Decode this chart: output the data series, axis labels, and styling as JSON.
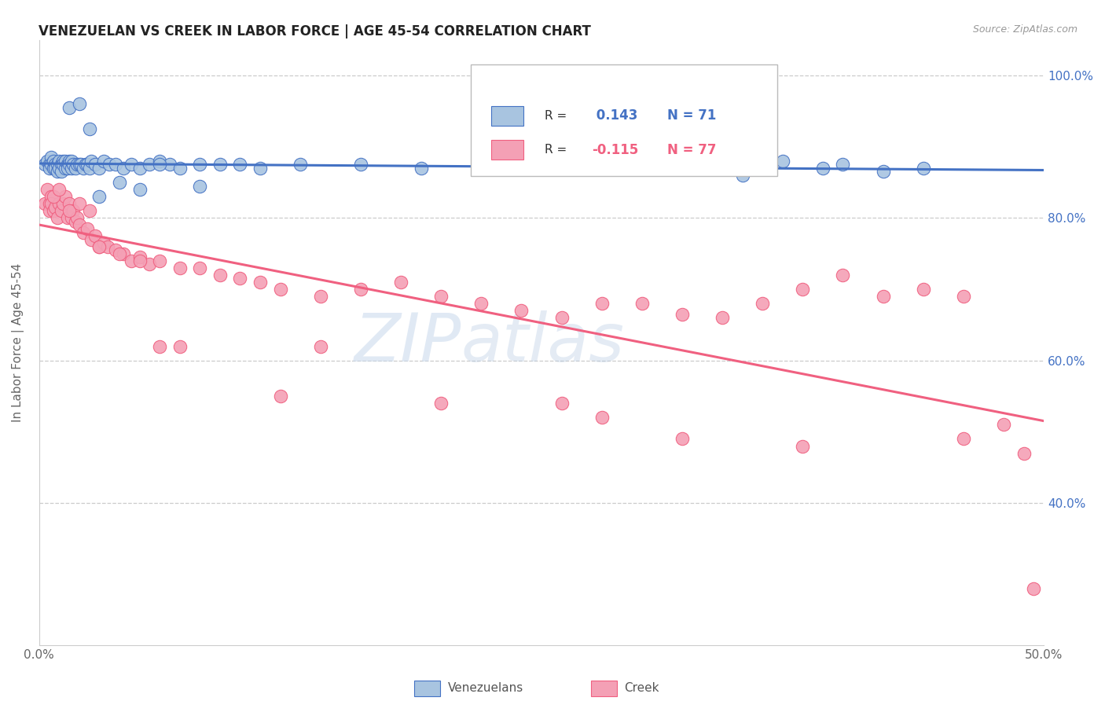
{
  "title": "VENEZUELAN VS CREEK IN LABOR FORCE | AGE 45-54 CORRELATION CHART",
  "source": "Source: ZipAtlas.com",
  "ylabel": "In Labor Force | Age 45-54",
  "xlim": [
    0.0,
    0.5
  ],
  "ylim": [
    0.2,
    1.05
  ],
  "xticks": [
    0.0,
    0.1,
    0.2,
    0.3,
    0.4,
    0.5
  ],
  "xticklabels": [
    "0.0%",
    "",
    "",
    "",
    "",
    "50.0%"
  ],
  "ytick_right_labels": [
    "40.0%",
    "60.0%",
    "80.0%",
    "100.0%"
  ],
  "ytick_right_vals": [
    0.4,
    0.6,
    0.8,
    1.0
  ],
  "legend_r_venezuelan": "0.143",
  "legend_n_venezuelan": "71",
  "legend_r_creek": "-0.115",
  "legend_n_creek": "77",
  "venezuelan_color": "#a8c4e0",
  "creek_color": "#f4a0b5",
  "trend_venezuelan_color": "#4472c4",
  "trend_creek_color": "#f06080",
  "watermark_zip": "ZIP",
  "watermark_atlas": "atlas",
  "venezuelan_x": [
    0.003,
    0.004,
    0.005,
    0.005,
    0.006,
    0.006,
    0.007,
    0.007,
    0.008,
    0.008,
    0.009,
    0.009,
    0.01,
    0.01,
    0.011,
    0.011,
    0.012,
    0.012,
    0.013,
    0.013,
    0.014,
    0.014,
    0.015,
    0.015,
    0.016,
    0.016,
    0.017,
    0.018,
    0.019,
    0.02,
    0.021,
    0.022,
    0.023,
    0.024,
    0.025,
    0.026,
    0.028,
    0.03,
    0.032,
    0.035,
    0.038,
    0.042,
    0.046,
    0.05,
    0.055,
    0.06,
    0.065,
    0.07,
    0.08,
    0.09,
    0.1,
    0.11,
    0.13,
    0.16,
    0.19,
    0.03,
    0.04,
    0.05,
    0.06,
    0.08,
    0.28,
    0.33,
    0.35,
    0.37,
    0.39,
    0.4,
    0.42,
    0.44,
    0.015,
    0.02,
    0.025
  ],
  "venezuelan_y": [
    0.875,
    0.88,
    0.875,
    0.87,
    0.885,
    0.875,
    0.87,
    0.88,
    0.875,
    0.87,
    0.875,
    0.865,
    0.88,
    0.87,
    0.875,
    0.865,
    0.88,
    0.875,
    0.87,
    0.88,
    0.875,
    0.87,
    0.88,
    0.875,
    0.87,
    0.88,
    0.875,
    0.87,
    0.875,
    0.875,
    0.875,
    0.87,
    0.875,
    0.875,
    0.87,
    0.88,
    0.875,
    0.87,
    0.88,
    0.875,
    0.875,
    0.87,
    0.875,
    0.87,
    0.875,
    0.88,
    0.875,
    0.87,
    0.875,
    0.875,
    0.875,
    0.87,
    0.875,
    0.875,
    0.87,
    0.83,
    0.85,
    0.84,
    0.875,
    0.845,
    0.875,
    0.875,
    0.86,
    0.88,
    0.87,
    0.875,
    0.865,
    0.87,
    0.955,
    0.96,
    0.925
  ],
  "creek_x": [
    0.003,
    0.004,
    0.005,
    0.005,
    0.006,
    0.006,
    0.007,
    0.008,
    0.009,
    0.01,
    0.011,
    0.012,
    0.013,
    0.014,
    0.015,
    0.016,
    0.017,
    0.018,
    0.019,
    0.02,
    0.022,
    0.024,
    0.026,
    0.028,
    0.03,
    0.032,
    0.034,
    0.038,
    0.042,
    0.046,
    0.05,
    0.055,
    0.06,
    0.07,
    0.08,
    0.09,
    0.1,
    0.11,
    0.12,
    0.14,
    0.16,
    0.18,
    0.2,
    0.22,
    0.24,
    0.26,
    0.28,
    0.3,
    0.32,
    0.34,
    0.36,
    0.38,
    0.4,
    0.42,
    0.44,
    0.46,
    0.007,
    0.01,
    0.015,
    0.02,
    0.025,
    0.03,
    0.04,
    0.05,
    0.06,
    0.07,
    0.12,
    0.14,
    0.2,
    0.26,
    0.28,
    0.32,
    0.38,
    0.46,
    0.48,
    0.49,
    0.495
  ],
  "creek_y": [
    0.82,
    0.84,
    0.82,
    0.81,
    0.83,
    0.82,
    0.81,
    0.815,
    0.8,
    0.82,
    0.81,
    0.82,
    0.83,
    0.8,
    0.82,
    0.8,
    0.81,
    0.795,
    0.8,
    0.79,
    0.78,
    0.785,
    0.77,
    0.775,
    0.76,
    0.765,
    0.76,
    0.755,
    0.75,
    0.74,
    0.745,
    0.735,
    0.74,
    0.73,
    0.73,
    0.72,
    0.715,
    0.71,
    0.7,
    0.69,
    0.7,
    0.71,
    0.69,
    0.68,
    0.67,
    0.66,
    0.68,
    0.68,
    0.665,
    0.66,
    0.68,
    0.7,
    0.72,
    0.69,
    0.7,
    0.69,
    0.83,
    0.84,
    0.81,
    0.82,
    0.81,
    0.76,
    0.75,
    0.74,
    0.62,
    0.62,
    0.55,
    0.62,
    0.54,
    0.54,
    0.52,
    0.49,
    0.48,
    0.49,
    0.51,
    0.47,
    0.28
  ]
}
